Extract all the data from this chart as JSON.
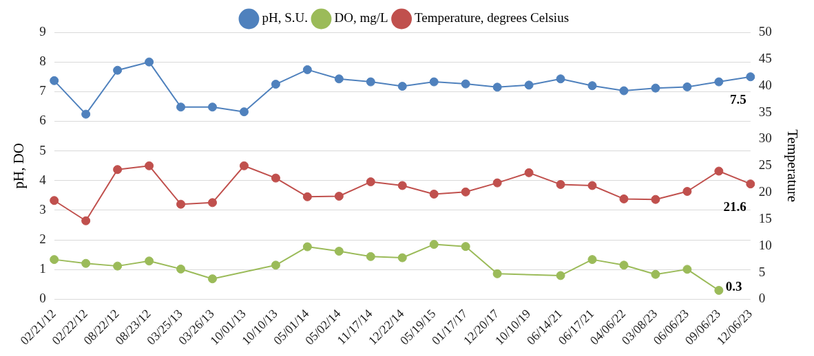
{
  "chart_data": {
    "type": "line",
    "ylabel": "pH, DO",
    "y2label": "Temperature",
    "categories": [
      "02/21/12",
      "02/22/12",
      "08/22/12",
      "08/23/12",
      "03/25/13",
      "03/26/13",
      "10/01/13",
      "10/10/13",
      "05/01/14",
      "05/02/14",
      "11/17/14",
      "12/22/14",
      "05/19/15",
      "01/17/17",
      "12/20/17",
      "10/10/19",
      "06/14/21",
      "06/17/21",
      "04/06/22",
      "03/08/23",
      "06/06/23",
      "09/06/23",
      "12/06/23"
    ],
    "series": [
      {
        "name": "pH, S.U.",
        "color": "#4f81bd",
        "values": [
          7.37,
          6.24,
          7.72,
          8.0,
          6.48,
          6.48,
          6.32,
          7.25,
          7.74,
          7.43,
          7.33,
          7.18,
          7.33,
          7.26,
          7.15,
          7.22,
          7.43,
          7.2,
          7.03,
          7.12,
          7.16,
          7.33,
          7.5
        ],
        "value_labels": [
          null,
          null,
          null,
          null,
          null,
          null,
          null,
          null,
          null,
          null,
          null,
          null,
          null,
          null,
          null,
          null,
          null,
          null,
          null,
          null,
          null,
          null,
          "7.5"
        ]
      },
      {
        "name": "DO, mg/L",
        "color": "#9bbb59",
        "values": [
          1.34,
          1.21,
          1.12,
          1.29,
          1.02,
          0.69,
          null,
          1.15,
          1.77,
          1.62,
          1.44,
          1.4,
          1.85,
          1.78,
          0.86,
          null,
          0.8,
          1.34,
          1.15,
          0.84,
          1.01,
          0.3,
          null
        ],
        "value_labels": [
          null,
          null,
          null,
          null,
          null,
          null,
          null,
          null,
          null,
          null,
          null,
          null,
          null,
          null,
          null,
          null,
          null,
          null,
          null,
          null,
          null,
          "0.3",
          null
        ]
      },
      {
        "name": "Temperature, degrees Celsius",
        "color": "#c0504d",
        "axis": "y2",
        "values": [
          18.5,
          14.7,
          24.3,
          25.0,
          17.8,
          18.1,
          25.0,
          22.7,
          19.2,
          19.3,
          22.0,
          21.3,
          19.7,
          20.1,
          21.8,
          23.7,
          21.5,
          21.3,
          18.8,
          18.7,
          20.2,
          24.0,
          21.6
        ],
        "value_labels": [
          null,
          null,
          null,
          null,
          null,
          null,
          null,
          null,
          null,
          null,
          null,
          null,
          null,
          null,
          null,
          null,
          null,
          null,
          null,
          null,
          null,
          null,
          "21.6"
        ]
      }
    ],
    "ylim": [
      0,
      9
    ],
    "yticks": [
      0,
      1,
      2,
      3,
      4,
      5,
      6,
      7,
      8,
      9
    ],
    "y2lim": [
      0,
      50
    ],
    "y2ticks": [
      0,
      5,
      10,
      15,
      20,
      25,
      30,
      35,
      40,
      45,
      50
    ],
    "grid": "y",
    "legend": "top",
    "marker": "circle",
    "line_style": "solid"
  }
}
